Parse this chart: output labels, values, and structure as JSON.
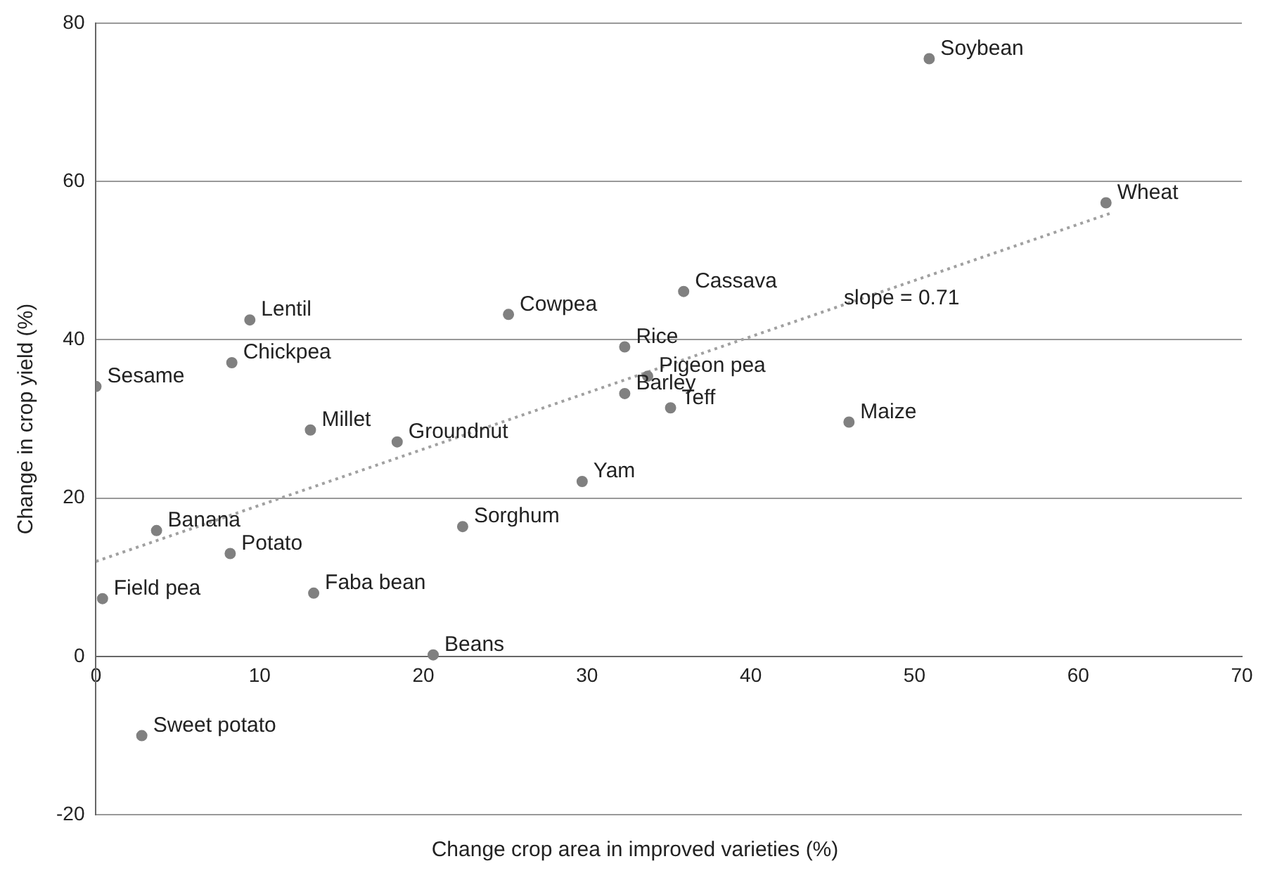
{
  "chart_data": {
    "type": "scatter",
    "xlabel": "Change crop area in improved varieties (%)",
    "ylabel": "Change in crop yield (%)",
    "xlim": [
      0,
      70
    ],
    "xticks": [
      0,
      10,
      20,
      30,
      40,
      50,
      60,
      70
    ],
    "ylim": [
      -20,
      80
    ],
    "yticks": [
      -20,
      0,
      20,
      40,
      60,
      80
    ],
    "grid": "y",
    "legend": false,
    "series": [
      {
        "color": "#808080",
        "marker": "circle",
        "x": [
          50.9,
          61.7,
          35.9,
          25.2,
          9.4,
          32.3,
          8.3,
          33.7,
          0,
          32.3,
          35.1,
          46.0,
          13.1,
          18.4,
          29.7,
          22.4,
          3.7,
          8.2,
          0.4,
          13.3,
          20.6,
          2.8
        ],
        "values": [
          75.5,
          57.3,
          46.1,
          43.2,
          42.5,
          39.1,
          37.1,
          35.4,
          34.1,
          33.2,
          31.4,
          29.6,
          28.6,
          27.1,
          22.1,
          16.4,
          15.9,
          13.0,
          7.3,
          8.0,
          0.2,
          -10.0
        ]
      },
      {
        "type": "line",
        "color": "#a0a0a0",
        "line_style": "dotted",
        "x": [
          0,
          62
        ],
        "values": [
          12,
          56
        ]
      }
    ],
    "annotations": [
      {
        "text": "Soybean",
        "x": 50.9,
        "y": 75.5
      },
      {
        "text": "Wheat",
        "x": 61.7,
        "y": 57.3
      },
      {
        "text": "Cassava",
        "x": 35.9,
        "y": 46.1
      },
      {
        "text": "Cowpea",
        "x": 25.2,
        "y": 43.2
      },
      {
        "text": "Lentil",
        "x": 9.4,
        "y": 42.5
      },
      {
        "text": "Rice",
        "x": 32.3,
        "y": 39.1
      },
      {
        "text": "Chickpea",
        "x": 8.3,
        "y": 37.1
      },
      {
        "text": "Pigeon pea",
        "x": 33.7,
        "y": 35.4
      },
      {
        "text": "Sesame",
        "x": 0,
        "y": 34.1
      },
      {
        "text": "Barley",
        "x": 32.3,
        "y": 33.2
      },
      {
        "text": "Teff",
        "x": 35.1,
        "y": 31.4
      },
      {
        "text": "Maize",
        "x": 46.0,
        "y": 29.6
      },
      {
        "text": "Millet",
        "x": 13.1,
        "y": 28.6
      },
      {
        "text": "Groundnut",
        "x": 18.4,
        "y": 27.1
      },
      {
        "text": "Yam",
        "x": 29.7,
        "y": 22.1
      },
      {
        "text": "Sorghum",
        "x": 22.4,
        "y": 16.4
      },
      {
        "text": "Banana",
        "x": 3.7,
        "y": 15.9
      },
      {
        "text": "Potato",
        "x": 8.2,
        "y": 13.0
      },
      {
        "text": "Field pea",
        "x": 0.4,
        "y": 7.3
      },
      {
        "text": "Faba bean",
        "x": 13.3,
        "y": 8.0
      },
      {
        "text": "Beans",
        "x": 20.6,
        "y": 0.2
      },
      {
        "text": "Sweet potato",
        "x": 2.8,
        "y": -10.0
      },
      {
        "text": "slope = 0.71",
        "x": 45,
        "y": 44
      }
    ]
  }
}
